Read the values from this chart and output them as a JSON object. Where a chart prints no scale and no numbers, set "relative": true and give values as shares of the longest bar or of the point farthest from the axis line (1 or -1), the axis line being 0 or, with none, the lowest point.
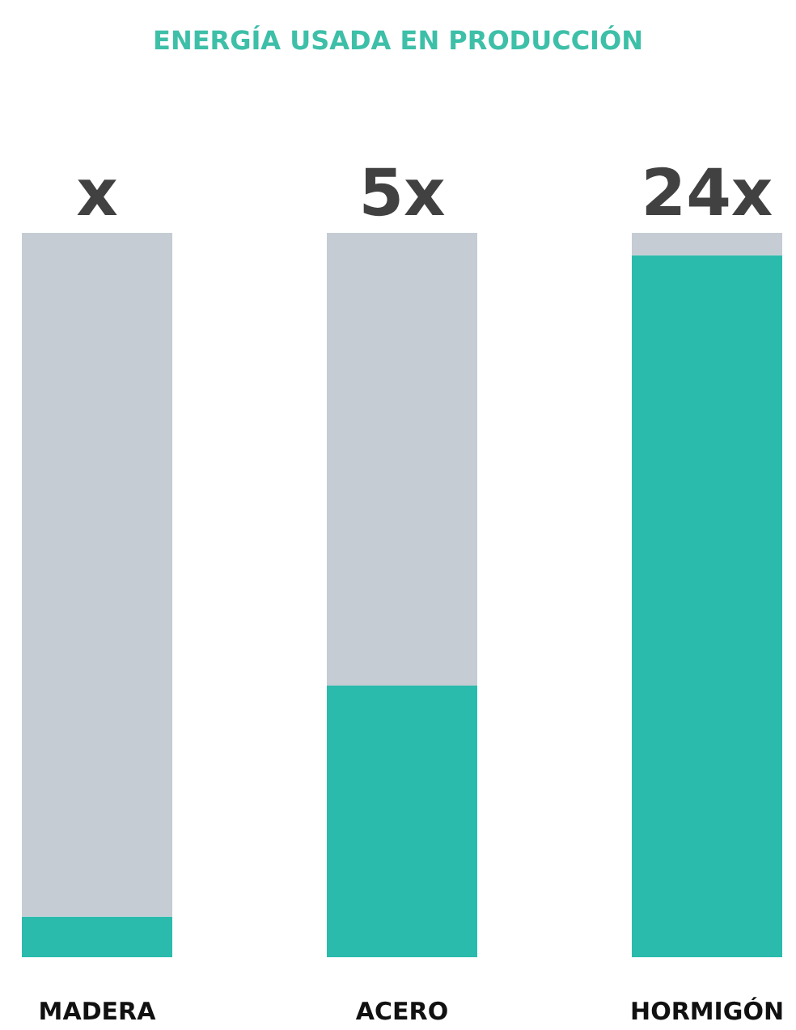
{
  "chart_data": {
    "type": "bar",
    "title": "ENERGÍA USADA EN PRODUCCIÓN",
    "categories": [
      "MADERA",
      "ACERO",
      "HORMIGÓN"
    ],
    "relative": true,
    "stacked": true,
    "series": [
      {
        "color": "#2bbbad",
        "values": [
          0.056,
          0.375,
          0.969
        ]
      },
      {
        "color": "#c5ccd3",
        "values": [
          0.944,
          0.625,
          0.031
        ]
      }
    ],
    "annotations": [
      {
        "text": "x",
        "x": "MADERA",
        "y": 1
      },
      {
        "text": "5x",
        "x": "ACERO",
        "y": 1
      },
      {
        "text": "24x",
        "x": "HORMIGÓN",
        "y": 1
      }
    ]
  }
}
